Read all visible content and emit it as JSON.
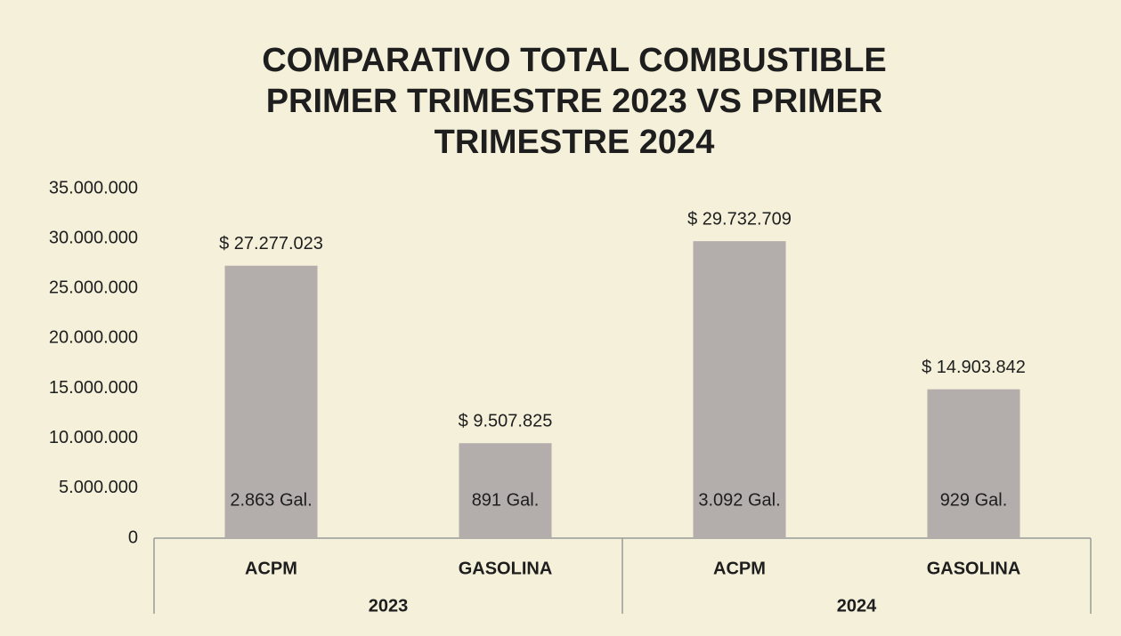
{
  "chart_data": {
    "type": "bar",
    "title": [
      "COMPARATIVO TOTAL COMBUSTIBLE",
      "PRIMER TRIMESTRE 2023 VS PRIMER",
      "TRIMESTRE 2024"
    ],
    "categories": [
      "ACPM",
      "GASOLINA",
      "ACPM",
      "GASOLINA"
    ],
    "groups": [
      "2023",
      "2024"
    ],
    "values": [
      27277023,
      9507825,
      29732709,
      14903842
    ],
    "value_labels": [
      "$ 27.277.023",
      "$ 9.507.825",
      "$ 29.732.709",
      "$ 14.903.842"
    ],
    "gallons": [
      2863,
      891,
      3092,
      929
    ],
    "gallon_labels": [
      "2.863 Gal.",
      "891 Gal.",
      "3.092 Gal.",
      "929 Gal."
    ],
    "color": "#b3adab",
    "ylim": [
      0,
      35000000
    ],
    "yticks": [
      0,
      {
        "value": 5000000,
        "label": "5.000.000"
      },
      {
        "value": 10000000,
        "label": "10.000.000"
      },
      {
        "value": 15000000,
        "label": "15.000.000"
      },
      {
        "value": 20000000,
        "label": "20.000.000"
      },
      {
        "value": 25000000,
        "label": "25.000.000"
      },
      {
        "value": 30000000,
        "label": "30.000.000"
      },
      {
        "value": 35000000,
        "label": "35.000.000"
      }
    ],
    "grid": false
  }
}
